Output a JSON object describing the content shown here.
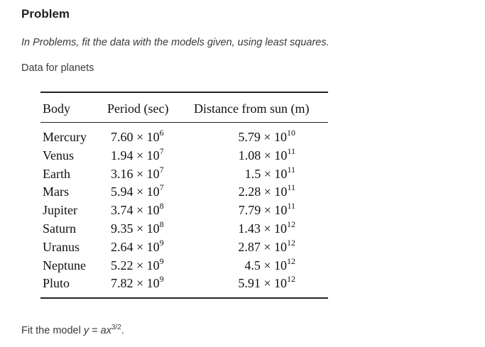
{
  "problem": {
    "heading": "Problem",
    "instruction": "In Problems, fit the data with the models given, using least squares.",
    "caption": "Data for planets"
  },
  "table": {
    "headers": {
      "body": "Body",
      "period": "Period (sec)",
      "distance": "Distance from sun (m)"
    },
    "rows": [
      {
        "body": "Mercury",
        "period": {
          "mantissa": "7.60",
          "exponent": "6"
        },
        "distance": {
          "mantissa": "5.79",
          "exponent": "10"
        }
      },
      {
        "body": "Venus",
        "period": {
          "mantissa": "1.94",
          "exponent": "7"
        },
        "distance": {
          "mantissa": "1.08",
          "exponent": "11"
        }
      },
      {
        "body": "Earth",
        "period": {
          "mantissa": "3.16",
          "exponent": "7"
        },
        "distance": {
          "mantissa": "1.5",
          "exponent": "11"
        }
      },
      {
        "body": "Mars",
        "period": {
          "mantissa": "5.94",
          "exponent": "7"
        },
        "distance": {
          "mantissa": "2.28",
          "exponent": "11"
        }
      },
      {
        "body": "Jupiter",
        "period": {
          "mantissa": "3.74",
          "exponent": "8"
        },
        "distance": {
          "mantissa": "7.79",
          "exponent": "11"
        }
      },
      {
        "body": "Saturn",
        "period": {
          "mantissa": "9.35",
          "exponent": "8"
        },
        "distance": {
          "mantissa": "1.43",
          "exponent": "12"
        }
      },
      {
        "body": "Uranus",
        "period": {
          "mantissa": "2.64",
          "exponent": "9"
        },
        "distance": {
          "mantissa": "2.87",
          "exponent": "12"
        }
      },
      {
        "body": "Neptune",
        "period": {
          "mantissa": "5.22",
          "exponent": "9"
        },
        "distance": {
          "mantissa": "4.5",
          "exponent": "12"
        }
      },
      {
        "body": "Pluto",
        "period": {
          "mantissa": "7.82",
          "exponent": "9"
        },
        "distance": {
          "mantissa": "5.91",
          "exponent": "12"
        }
      }
    ]
  },
  "footer": {
    "prefix": "Fit the model ",
    "lhs": "y",
    "equals": " = ",
    "coef": "ax",
    "exponent": "3/2",
    "suffix": "."
  }
}
